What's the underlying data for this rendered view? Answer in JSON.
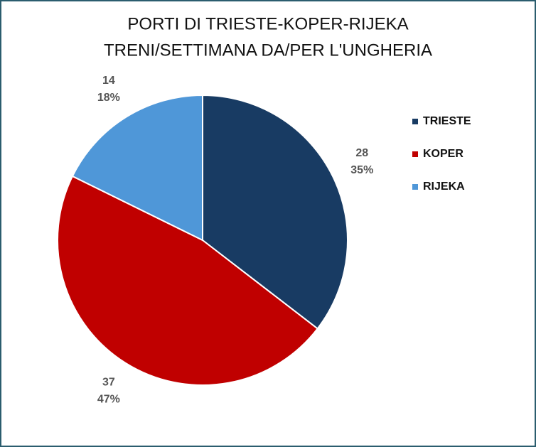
{
  "chart_data": {
    "type": "pie",
    "title": [
      "PORTI DI TRIESTE-KOPER-RIJEKA",
      "TRENI/SETTIMANA DA/PER L'UNGHERIA"
    ],
    "categories": [
      "TRIESTE",
      "KOPER",
      "RIJEKA"
    ],
    "values": [
      28,
      37,
      14
    ],
    "percent_labels": [
      "35%",
      "47%",
      "18%"
    ],
    "colors": [
      "#183b63",
      "#c00000",
      "#4f97d8"
    ],
    "legend": "right"
  }
}
